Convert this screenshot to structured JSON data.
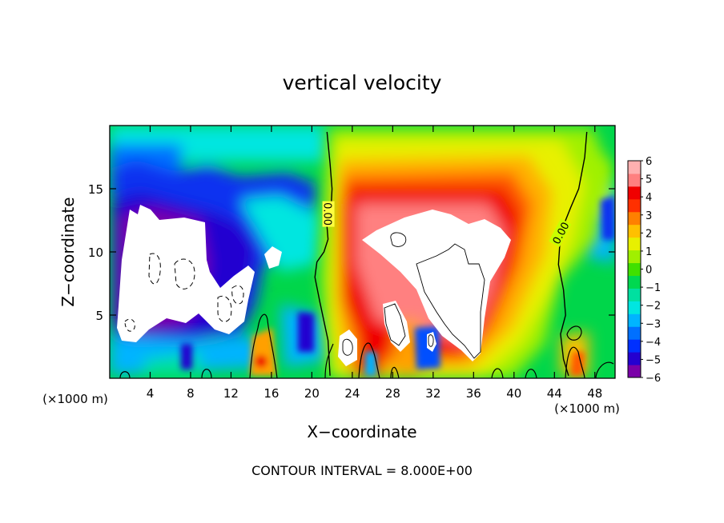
{
  "chart_data": {
    "type": "heatmap",
    "title": "vertical velocity",
    "xlabel": "X−coordinate",
    "ylabel": "Z−coordinate",
    "x_unit_label": "(×1000 m)",
    "footer": "CONTOUR INTERVAL = 8.000E+00",
    "xlim": [
      0,
      50
    ],
    "ylim": [
      0,
      20
    ],
    "x_ticks": [
      4,
      8,
      12,
      16,
      20,
      24,
      28,
      32,
      36,
      40,
      44,
      48
    ],
    "y_ticks": [
      5,
      10,
      15
    ],
    "colorbar": {
      "min": -6,
      "max": 6,
      "tick_labels": [
        "6",
        "5",
        "4",
        "3",
        "2",
        "1",
        "0",
        "−1",
        "−2",
        "−3",
        "−4",
        "−5",
        "−6"
      ],
      "colors": [
        "#7a00a8",
        "#2400d0",
        "#0030ff",
        "#0070ff",
        "#00b4ff",
        "#00e6e0",
        "#00e0a0",
        "#00d850",
        "#40e000",
        "#a0f000",
        "#e8f000",
        "#ffc000",
        "#ff8000",
        "#ff3000",
        "#f00000",
        "#ff8080",
        "#ffb0b0"
      ],
      "saturation_color": "#ffffff"
    },
    "contour_labels": [
      "0.00",
      "0.00"
    ],
    "zero_contours": [
      {
        "x": [
          21.5,
          21.8,
          22.0,
          21.9,
          21.6,
          21.5,
          21.6,
          21.2,
          20.5,
          20.3,
          20.8,
          21.6,
          21.8
        ],
        "z": [
          19.5,
          17.0,
          15.0,
          13.5,
          13.0,
          12.0,
          11.0,
          10.0,
          9.2,
          8.0,
          6.0,
          3.0,
          0.2
        ]
      },
      {
        "x": [
          47.2,
          47.0,
          46.4,
          45.6,
          44.6,
          44.4,
          44.9,
          45.1,
          44.6,
          44.9,
          45.4
        ],
        "z": [
          19.5,
          17.5,
          15.0,
          13.5,
          11.5,
          9.0,
          7.0,
          5.0,
          3.5,
          1.5,
          0.2
        ]
      }
    ]
  }
}
